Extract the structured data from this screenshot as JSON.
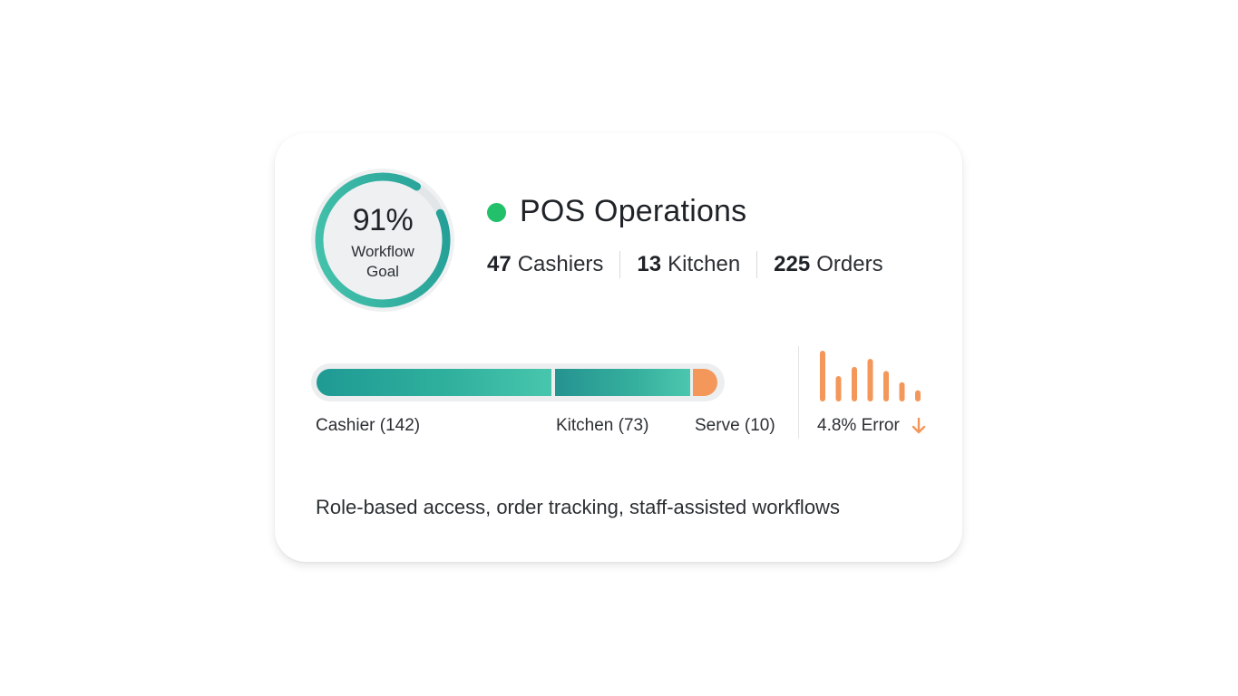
{
  "gauge": {
    "percent_label": "91%",
    "percent_value": 0.91,
    "label_line1": "Workflow",
    "label_line2": "Goal",
    "color": "#2bb3a0"
  },
  "header": {
    "status_color": "#22c06a",
    "title": "POS Operations"
  },
  "stats": [
    {
      "num": "47",
      "label": "Cashiers"
    },
    {
      "num": "13",
      "label": "Kitchen"
    },
    {
      "num": "225",
      "label": "Orders"
    }
  ],
  "pipeline": {
    "segments": [
      {
        "label": "Cashier (142)",
        "value": 142
      },
      {
        "label": "Kitchen (73)",
        "value": 73
      },
      {
        "label": "Serve (10)",
        "value": 10
      }
    ]
  },
  "errors": {
    "label": "4.8% Error",
    "trend_icon": "arrow-down-icon",
    "color": "#f3975a",
    "bars": [
      1.0,
      0.5,
      0.68,
      0.84,
      0.6,
      0.38,
      0.22
    ]
  },
  "footer": {
    "description": "Role-based access, order tracking, staff-assisted workflows"
  }
}
